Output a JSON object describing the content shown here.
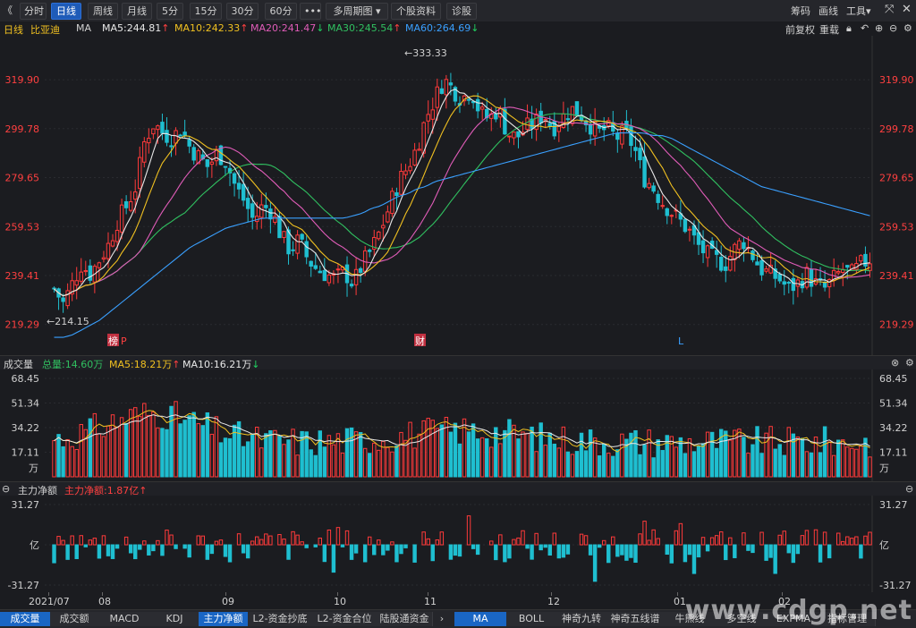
{
  "toolbar": {
    "back": "《",
    "buttons": [
      "分时",
      "日线",
      "周线",
      "月线",
      "5分",
      "15分",
      "30分",
      "60分",
      "•••",
      "多周期图",
      "个股资料",
      "诊股"
    ],
    "active": "日线",
    "right": [
      "筹码",
      "画线",
      "工具"
    ],
    "colors": {
      "active_bg": "#1e5bb8"
    }
  },
  "ma_legend": {
    "period": "日线",
    "stock_name": "比亚迪",
    "label": "MA",
    "items": [
      {
        "text": "MA5:244.81",
        "arrow": "↑",
        "color": "#e8e8e8",
        "arrow_color": "#ff4040"
      },
      {
        "text": "MA10:242.33",
        "arrow": "↑",
        "color": "#f0c020",
        "arrow_color": "#ff4040"
      },
      {
        "text": "MA20:241.47",
        "arrow": "↓",
        "color": "#e05cb8",
        "arrow_color": "#20d060"
      },
      {
        "text": "MA30:245.54",
        "arrow": "↑",
        "color": "#30c060",
        "arrow_color": "#ff4040"
      },
      {
        "text": "MA60:264.69",
        "arrow": "↓",
        "color": "#3aa0ff",
        "arrow_color": "#20d060"
      }
    ],
    "right_text": [
      "前复权",
      "重载"
    ]
  },
  "price_axis": {
    "ticks": [
      "319.90",
      "299.78",
      "279.65",
      "259.53",
      "239.41",
      "219.29"
    ],
    "high_label": "←333.33",
    "low_label": "←214.15",
    "markers": [
      "榜",
      "财",
      "L"
    ],
    "marker_p": "P"
  },
  "volume_panel": {
    "title": "成交量",
    "total": "总量:14.60万",
    "ma5": "MA5:18.21万",
    "ma5_arrow": "↑",
    "ma10": "MA10:16.21万",
    "ma10_arrow": "↓",
    "ticks": [
      "68.45",
      "51.34",
      "34.22",
      "17.11"
    ],
    "unit": "万"
  },
  "flow_panel": {
    "title": "主力净额",
    "value": "主力净额:1.87亿",
    "arrow": "↑",
    "ticks": [
      "31.27",
      "亿",
      "-31.27"
    ]
  },
  "date_axis": [
    "2021/07",
    "08",
    "09",
    "10",
    "11",
    "12",
    "01",
    "02"
  ],
  "bottom_tabs_left": [
    "成交量",
    "成交额",
    "MACD",
    "KDJ",
    "主力净额",
    "L2-资金抄底",
    "L2-资金合位",
    "陆股通资金"
  ],
  "bottom_tabs_right": [
    "MA",
    "BOLL",
    "神奇九转",
    "神奇五线谱",
    "牛熊线",
    "多空线",
    "EXPMA",
    "指标管理"
  ],
  "bottom_active": [
    "成交量",
    "主力净额",
    "MA"
  ],
  "watermark": "www.cdgp.net",
  "chart_data": {
    "type": "candlestick",
    "ylim": [
      210,
      335
    ],
    "close_path": [
      234,
      228,
      236,
      244,
      240,
      246,
      252,
      262,
      268,
      276,
      295,
      302,
      298,
      296,
      300,
      292,
      288,
      284,
      290,
      286,
      276,
      270,
      262,
      268,
      266,
      256,
      250,
      254,
      246,
      242,
      240,
      238,
      241,
      236,
      244,
      250,
      258,
      268,
      278,
      284,
      292,
      304,
      312,
      320,
      316,
      312,
      316,
      306,
      304,
      308,
      298,
      296,
      300,
      302,
      306,
      300,
      304,
      308,
      306,
      302,
      298,
      300,
      296,
      298,
      292,
      280,
      276,
      270,
      266,
      262,
      258,
      252,
      248,
      246,
      244,
      250,
      254,
      248,
      242,
      240,
      238,
      234,
      236,
      240,
      236,
      234,
      238,
      242,
      240,
      244,
      246
    ],
    "ma60_path": [
      214,
      214,
      215,
      217,
      219,
      221,
      224,
      227,
      230,
      233,
      236,
      239,
      242,
      245,
      248,
      251,
      253,
      255,
      257,
      259,
      260,
      261,
      262,
      263,
      263,
      263,
      263,
      263,
      263,
      263,
      263,
      263,
      263,
      264,
      265,
      267,
      268,
      270,
      272,
      273,
      275,
      276,
      278,
      279,
      280,
      281,
      282,
      283,
      284,
      285,
      286,
      287,
      288,
      289,
      290,
      291,
      292,
      293,
      294,
      295,
      296,
      297,
      298,
      298,
      298,
      298,
      297,
      297,
      296,
      294,
      292,
      290,
      288,
      286,
      284,
      282,
      280,
      278,
      276,
      275,
      274,
      273,
      272,
      271,
      270,
      269,
      268,
      267,
      266,
      265,
      264
    ],
    "volume_ylim": [
      0,
      68.45
    ],
    "flow_ylim": [
      -31.27,
      31.27
    ]
  }
}
